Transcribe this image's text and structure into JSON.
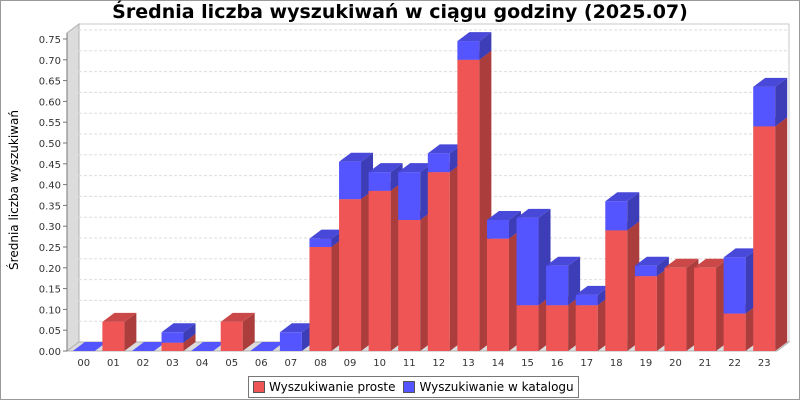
{
  "chart_data": {
    "type": "bar",
    "stacked": true,
    "title": "Średnia liczba wyszukiwań w ciągu godziny (2025.07)",
    "ylabel": "Średnia liczba wyszukiwań",
    "xlabel": "",
    "ylim": [
      0,
      0.75
    ],
    "yticks": [
      "0.00",
      "0.05",
      "0.10",
      "0.15",
      "0.20",
      "0.25",
      "0.30",
      "0.35",
      "0.40",
      "0.45",
      "0.50",
      "0.55",
      "0.60",
      "0.65",
      "0.70",
      "0.75"
    ],
    "categories": [
      "00",
      "01",
      "02",
      "03",
      "04",
      "05",
      "06",
      "07",
      "08",
      "09",
      "10",
      "11",
      "12",
      "13",
      "14",
      "15",
      "16",
      "17",
      "18",
      "19",
      "20",
      "21",
      "22",
      "23"
    ],
    "series": [
      {
        "name": "Wyszukiwanie proste",
        "color": "#ef5555",
        "values": [
          0,
          0.07,
          0,
          0.02,
          0,
          0.07,
          0,
          0,
          0.25,
          0.365,
          0.385,
          0.315,
          0.43,
          0.7,
          0.27,
          0.11,
          0.11,
          0.11,
          0.29,
          0.18,
          0.2,
          0.2,
          0.09,
          0.54
        ]
      },
      {
        "name": "Wyszukiwanie w katalogu",
        "color": "#5555ff",
        "values": [
          0,
          0,
          0,
          0.025,
          0,
          0,
          0,
          0.045,
          0.02,
          0.09,
          0.045,
          0.115,
          0.045,
          0.045,
          0.045,
          0.21,
          0.095,
          0.025,
          0.07,
          0.025,
          0,
          0,
          0.135,
          0.095
        ]
      }
    ],
    "grid": true,
    "legend_position": "bottom"
  }
}
